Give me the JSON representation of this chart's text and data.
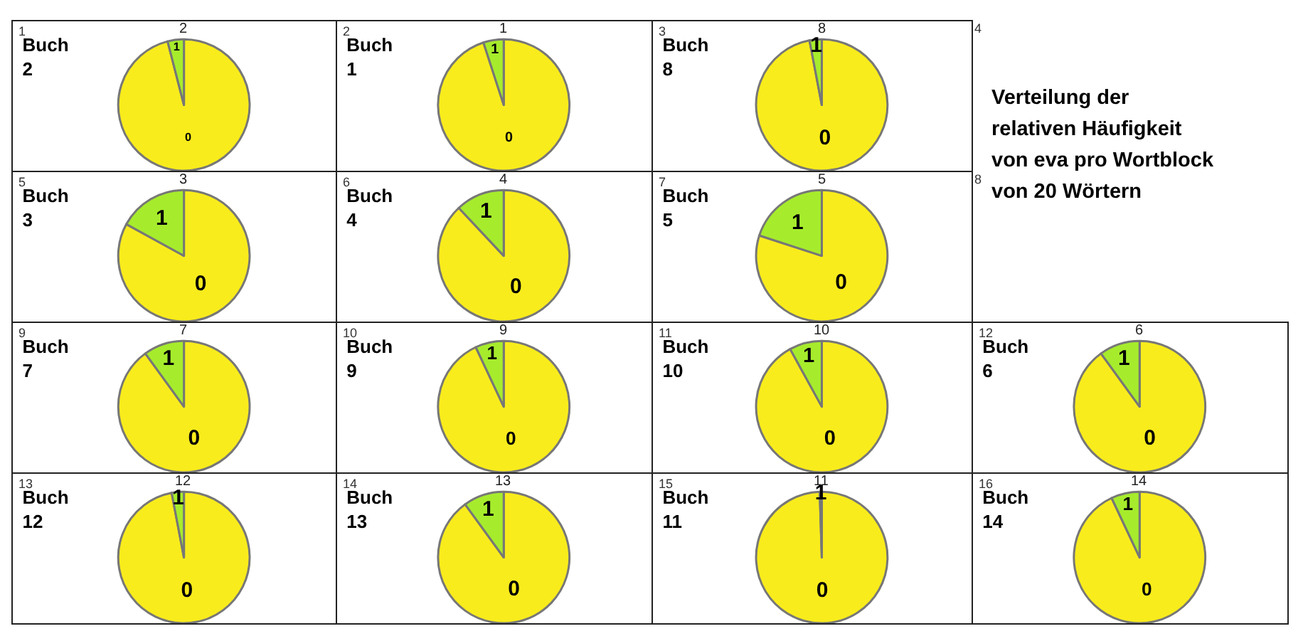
{
  "chart_data": [
    {
      "type": "pie",
      "title": "Buch\n2",
      "annotations": [
        "1",
        "2"
      ],
      "categories": [
        "0",
        "1"
      ],
      "values": [
        96,
        4
      ],
      "colors": [
        "#f9ec1c",
        "#a6ec2c"
      ]
    },
    {
      "type": "pie",
      "title": "Buch\n1",
      "annotations": [
        "2",
        "1"
      ],
      "categories": [
        "0",
        "1"
      ],
      "values": [
        95,
        5
      ],
      "colors": [
        "#f9ec1c",
        "#a6ec2c"
      ]
    },
    {
      "type": "pie",
      "title": "Buch\n8",
      "annotations": [
        "3",
        "8"
      ],
      "categories": [
        "0",
        "1"
      ],
      "values": [
        97,
        3
      ],
      "colors": [
        "#f9ec1c",
        "#a6ec2c"
      ]
    },
    {
      "type": "other",
      "title": "Verteilung der\nrelativen Häufigkeit\nvon eva pro Wortblock\nvon 20 Wörtern",
      "annotations": [
        "4",
        "8"
      ]
    },
    {
      "type": "pie",
      "title": "Buch\n3",
      "annotations": [
        "5",
        "3"
      ],
      "categories": [
        "0",
        "1"
      ],
      "values": [
        83,
        17
      ],
      "colors": [
        "#f9ec1c",
        "#a6ec2c"
      ]
    },
    {
      "type": "pie",
      "title": "Buch\n4",
      "annotations": [
        "6",
        "4"
      ],
      "categories": [
        "0",
        "1"
      ],
      "values": [
        88,
        12
      ],
      "colors": [
        "#f9ec1c",
        "#a6ec2c"
      ]
    },
    {
      "type": "pie",
      "title": "Buch\n5",
      "annotations": [
        "7",
        "5"
      ],
      "categories": [
        "0",
        "1"
      ],
      "values": [
        80,
        20
      ],
      "colors": [
        "#f9ec1c",
        "#a6ec2c"
      ]
    },
    {
      "type": "pie",
      "title": "Buch\n7",
      "annotations": [
        "9",
        "7"
      ],
      "categories": [
        "0",
        "1"
      ],
      "values": [
        90,
        10
      ],
      "colors": [
        "#f9ec1c",
        "#a6ec2c"
      ]
    },
    {
      "type": "pie",
      "title": "Buch\n9",
      "annotations": [
        "10",
        "9"
      ],
      "categories": [
        "0",
        "1"
      ],
      "values": [
        93,
        7
      ],
      "colors": [
        "#f9ec1c",
        "#a6ec2c"
      ]
    },
    {
      "type": "pie",
      "title": "Buch\n10",
      "annotations": [
        "11",
        "10"
      ],
      "categories": [
        "0",
        "1"
      ],
      "values": [
        92,
        8
      ],
      "colors": [
        "#f9ec1c",
        "#a6ec2c"
      ]
    },
    {
      "type": "pie",
      "title": "Buch\n6",
      "annotations": [
        "12",
        "6"
      ],
      "categories": [
        "0",
        "1"
      ],
      "values": [
        90,
        10
      ],
      "colors": [
        "#f9ec1c",
        "#a6ec2c"
      ]
    },
    {
      "type": "pie",
      "title": "Buch\n12",
      "annotations": [
        "13",
        "12"
      ],
      "categories": [
        "0",
        "1"
      ],
      "values": [
        97,
        3
      ],
      "colors": [
        "#f9ec1c",
        "#a6ec2c"
      ]
    },
    {
      "type": "pie",
      "title": "Buch\n13",
      "annotations": [
        "14",
        "13"
      ],
      "categories": [
        "0",
        "1"
      ],
      "values": [
        90,
        10
      ],
      "colors": [
        "#f9ec1c",
        "#a6ec2c"
      ]
    },
    {
      "type": "pie",
      "title": "Buch\n11",
      "annotations": [
        "15",
        "11"
      ],
      "categories": [
        "0",
        "1"
      ],
      "values": [
        99.5,
        0.5
      ],
      "colors": [
        "#f9ec1c",
        "#a6ec2c"
      ]
    },
    {
      "type": "pie",
      "title": "Buch\n14",
      "annotations": [
        "16",
        "14"
      ],
      "categories": [
        "0",
        "1"
      ],
      "values": [
        93,
        7
      ],
      "colors": [
        "#f9ec1c",
        "#a6ec2c"
      ]
    }
  ]
}
